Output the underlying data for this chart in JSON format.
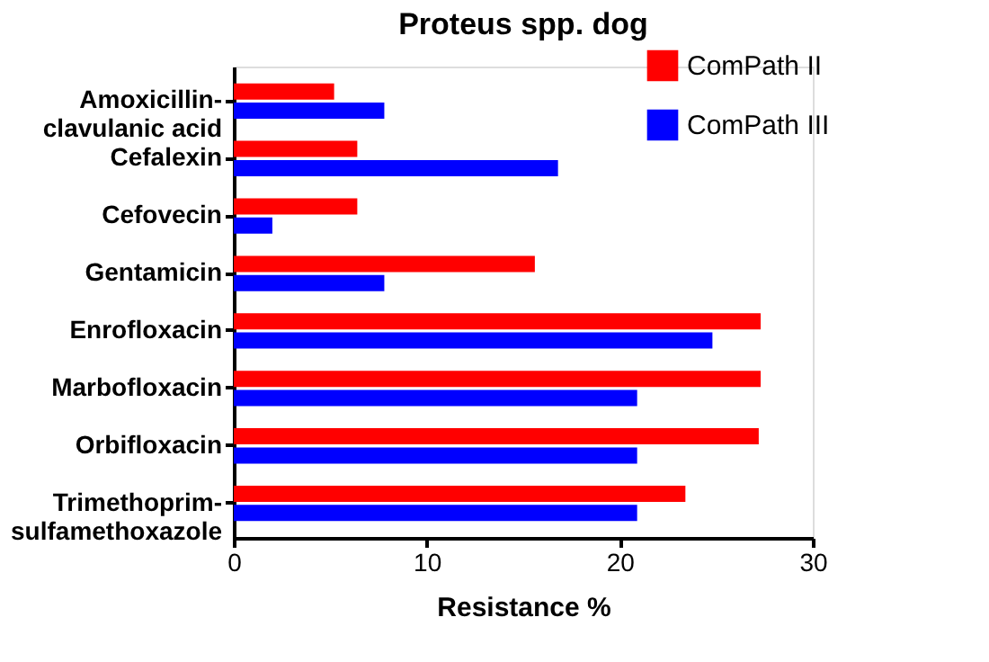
{
  "chart_data": {
    "type": "bar",
    "orientation": "horizontal",
    "title": "Proteus spp. dog",
    "xlabel": "Resistance %",
    "categories": [
      "Amoxicillin-\nclavulanic acid",
      "Cefalexin",
      "Cefovecin",
      "Gentamicin",
      "Enrofloxacin",
      "Marbofloxacin",
      "Orbifloxacin",
      "Trimethoprim-\nsulfamethoxazole"
    ],
    "series": [
      {
        "name": "ComPath II",
        "color": "#ff0000",
        "values": [
          5.2,
          6.4,
          6.4,
          15.6,
          27.3,
          27.3,
          27.2,
          23.4
        ]
      },
      {
        "name": "ComPath III",
        "color": "#0000ff",
        "values": [
          7.8,
          16.8,
          2.0,
          7.8,
          24.8,
          20.9,
          20.9,
          20.9
        ]
      }
    ],
    "xlim": [
      0,
      30
    ],
    "xticks": [
      0,
      10,
      20,
      30
    ],
    "grid": false,
    "legend": "top right"
  }
}
